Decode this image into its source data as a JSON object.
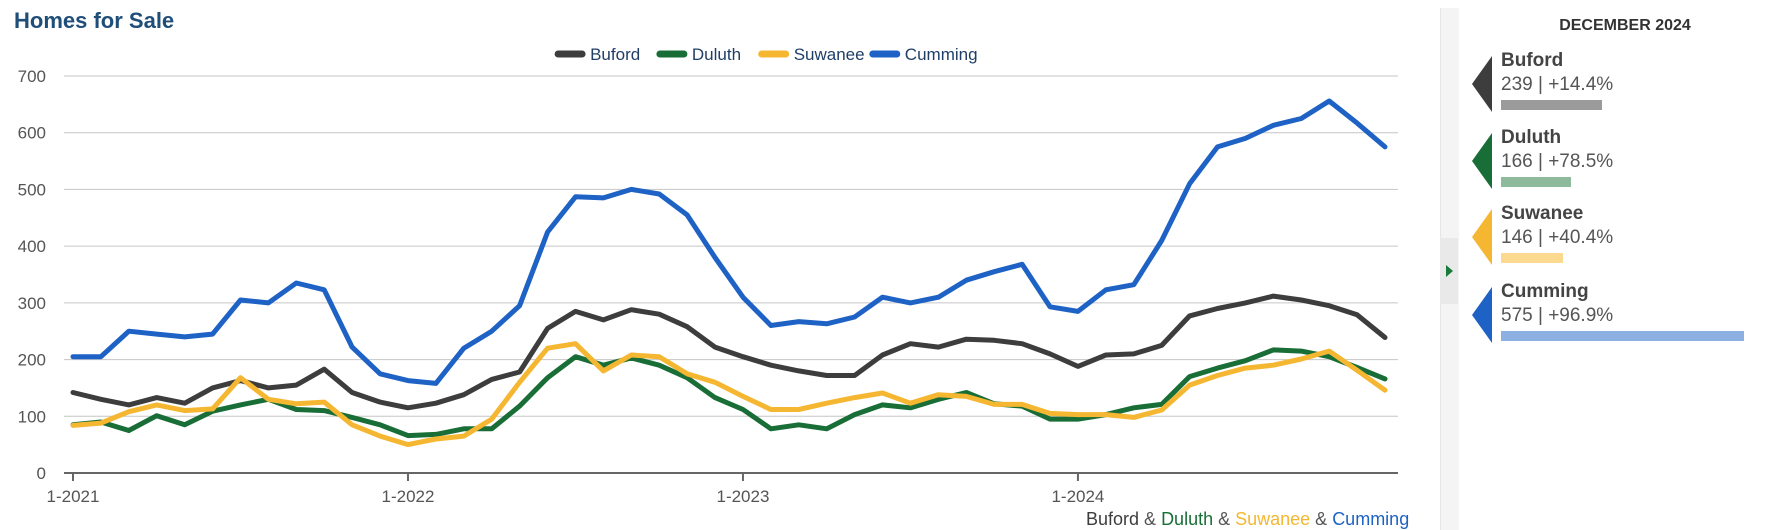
{
  "title": "Homes for Sale",
  "colors": {
    "Buford": "#3d3d3d",
    "Duluth": "#186e36",
    "Suwanee": "#f5b731",
    "Cumming": "#1d62c4",
    "title": "#1f4e79",
    "grid": "#c6c6c6"
  },
  "side_panel": {
    "header": "DECEMBER 2024",
    "items": [
      {
        "name": "Buford",
        "stat": "239 | +14.4%",
        "bar_color": "#9b9b9b",
        "flag_color": "#3d3d3d",
        "value": 239,
        "change_pct": 14.4
      },
      {
        "name": "Duluth",
        "stat": "166 | +78.5%",
        "bar_color": "#8cba9a",
        "flag_color": "#186e36",
        "value": 166,
        "change_pct": 78.5
      },
      {
        "name": "Suwanee",
        "stat": "146 | +40.4%",
        "bar_color": "#fbd98e",
        "flag_color": "#f5b731",
        "value": 146,
        "change_pct": 40.4
      },
      {
        "name": "Cumming",
        "stat": "575 | +96.9%",
        "bar_color": "#8db0e2",
        "flag_color": "#1d62c4",
        "value": 575,
        "change_pct": 96.9
      }
    ]
  },
  "bottom_legend": {
    "parts": [
      {
        "text": "Buford",
        "color": "#3d3d3d"
      },
      {
        "text": " & ",
        "color": "#555555"
      },
      {
        "text": "Duluth",
        "color": "#186e36"
      },
      {
        "text": " & ",
        "color": "#555555"
      },
      {
        "text": "Suwanee",
        "color": "#f5b731"
      },
      {
        "text": " & ",
        "color": "#555555"
      },
      {
        "text": "Cumming",
        "color": "#1d62c4"
      }
    ]
  },
  "chart_data": {
    "type": "line",
    "title": "Homes for Sale",
    "legend_position": "top-center",
    "grid": true,
    "ylim": [
      0,
      700
    ],
    "y_ticks": [
      0,
      100,
      200,
      300,
      400,
      500,
      600,
      700
    ],
    "x_tick_labels": [
      "1-2021",
      "1-2022",
      "1-2023",
      "1-2024"
    ],
    "x_tick_months": [
      0,
      12,
      24,
      36
    ],
    "x_start": "2021-01",
    "x_end": "2024-12",
    "series": [
      {
        "name": "Buford",
        "color": "#3d3d3d",
        "values": [
          142,
          130,
          120,
          133,
          123,
          150,
          163,
          150,
          155,
          183,
          142,
          125,
          115,
          123,
          138,
          165,
          178,
          255,
          285,
          270,
          288,
          280,
          258,
          222,
          205,
          190,
          180,
          172,
          172,
          208,
          228,
          222,
          236,
          234,
          228,
          210,
          188,
          208,
          210,
          225,
          277,
          290,
          300,
          312,
          305,
          295,
          279,
          239
        ]
      },
      {
        "name": "Duluth",
        "color": "#186e36",
        "values": [
          85,
          90,
          75,
          101,
          85,
          109,
          120,
          130,
          112,
          110,
          98,
          85,
          66,
          68,
          78,
          78,
          118,
          168,
          205,
          190,
          203,
          190,
          168,
          133,
          112,
          78,
          85,
          78,
          103,
          120,
          115,
          130,
          142,
          122,
          118,
          95,
          95,
          103,
          115,
          121,
          170,
          185,
          198,
          217,
          215,
          205,
          186,
          166
        ]
      },
      {
        "name": "Suwanee",
        "color": "#f5b731",
        "values": [
          84,
          88,
          108,
          120,
          110,
          113,
          168,
          130,
          122,
          125,
          85,
          65,
          50,
          60,
          65,
          95,
          160,
          220,
          228,
          180,
          208,
          205,
          175,
          160,
          135,
          112,
          112,
          123,
          133,
          141,
          123,
          138,
          135,
          121,
          121,
          105,
          103,
          103,
          98,
          111,
          155,
          172,
          185,
          190,
          201,
          215,
          181,
          146
        ]
      },
      {
        "name": "Cumming",
        "color": "#1d62c4",
        "values": [
          205,
          205,
          250,
          245,
          240,
          245,
          305,
          300,
          335,
          323,
          222,
          175,
          163,
          158,
          220,
          250,
          295,
          425,
          487,
          485,
          500,
          492,
          455,
          380,
          310,
          260,
          267,
          263,
          275,
          310,
          300,
          310,
          340,
          355,
          368,
          293,
          285,
          323,
          332,
          410,
          510,
          575,
          590,
          613,
          625,
          656,
          617,
          575
        ]
      }
    ]
  }
}
